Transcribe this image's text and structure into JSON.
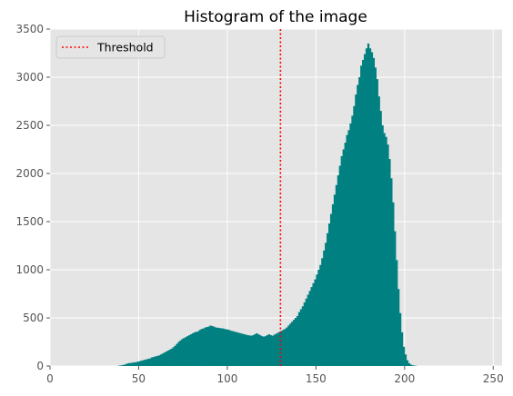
{
  "chart_data": {
    "type": "bar",
    "title": "Histogram of the image",
    "xlabel": "",
    "ylabel": "",
    "xlim": [
      0,
      255
    ],
    "ylim": [
      0,
      3500
    ],
    "xticks": [
      0,
      50,
      100,
      150,
      200,
      250
    ],
    "yticks": [
      0,
      500,
      1000,
      1500,
      2000,
      2500,
      3000,
      3500
    ],
    "grid": true,
    "legend_position": "top-left",
    "bar_color": "#008080",
    "threshold": {
      "label": "Threshold",
      "x": 130,
      "color": "#ff0000",
      "style": "dotted"
    },
    "series": [
      {
        "bin_start": 38,
        "values": [
          2,
          5,
          8,
          12,
          18,
          25,
          30,
          32,
          35,
          38,
          40,
          45,
          50,
          55,
          60,
          65,
          70,
          75,
          80,
          90,
          95,
          100,
          105,
          110,
          120,
          130,
          140,
          150,
          160,
          170,
          180,
          195,
          210,
          230,
          250,
          265,
          280,
          290,
          300,
          310,
          320,
          330,
          340,
          350,
          355,
          360,
          375,
          385,
          390,
          400,
          405,
          410,
          420,
          415,
          408,
          400,
          398,
          395,
          392,
          390,
          385,
          380,
          378,
          370,
          365,
          360,
          355,
          350,
          345,
          340,
          335,
          330,
          325,
          320,
          318,
          315,
          320,
          330,
          340,
          330,
          320,
          310,
          305,
          310,
          320,
          330,
          320,
          315,
          325,
          335,
          345,
          355,
          365,
          375,
          385,
          400,
          420,
          440,
          460,
          480,
          500,
          520,
          560,
          590,
          620,
          660,
          700,
          740,
          780,
          820,
          860,
          900,
          950,
          1000,
          1050,
          1120,
          1200,
          1280,
          1380,
          1480,
          1580,
          1680,
          1780,
          1880,
          1980,
          2080,
          2180,
          2250,
          2320,
          2400,
          2450,
          2520,
          2600,
          2700,
          2820,
          2920,
          3000,
          3120,
          3180,
          3240,
          3300,
          3350,
          3300,
          3260,
          3200,
          3100,
          2980,
          2800,
          2650,
          2500,
          2420,
          2380,
          2300,
          2150,
          1950,
          1700,
          1400,
          1100,
          800,
          550,
          350,
          200,
          120,
          60,
          30,
          15,
          8,
          4,
          2
        ]
      }
    ]
  }
}
